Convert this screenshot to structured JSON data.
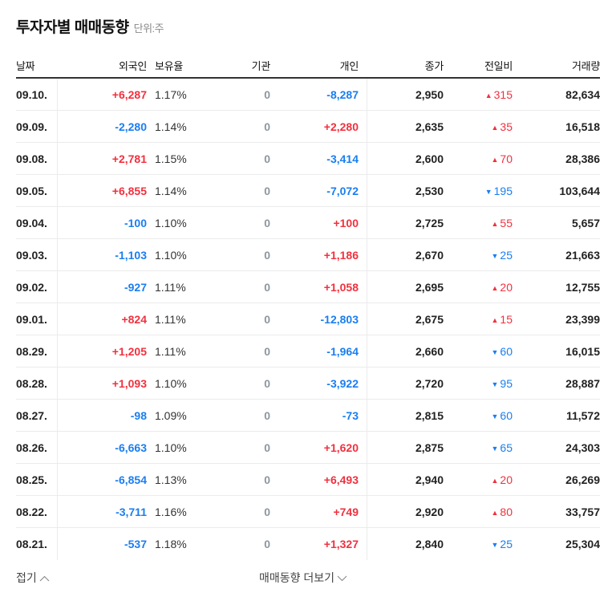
{
  "header": {
    "title": "투자자별 매매동향",
    "unit": "단위:주"
  },
  "colors": {
    "up": "#f0313f",
    "down": "#1a7ef0",
    "neutral": "#8e969e"
  },
  "table": {
    "columns": {
      "date": "날짜",
      "foreign": "외국인",
      "ratio": "보유율",
      "institution": "기관",
      "individual": "개인",
      "close": "종가",
      "change": "전일비",
      "volume": "거래량"
    },
    "rows": [
      {
        "date": "09.10.",
        "foreign": "+6,287",
        "ratio": "1.17%",
        "institution": "0",
        "individual": "-8,287",
        "close": "2,950",
        "change_dir": "up",
        "change_icon": "▲",
        "change": "315",
        "volume": "82,634"
      },
      {
        "date": "09.09.",
        "foreign": "-2,280",
        "ratio": "1.14%",
        "institution": "0",
        "individual": "+2,280",
        "close": "2,635",
        "change_dir": "up",
        "change_icon": "▲",
        "change": "35",
        "volume": "16,518"
      },
      {
        "date": "09.08.",
        "foreign": "+2,781",
        "ratio": "1.15%",
        "institution": "0",
        "individual": "-3,414",
        "close": "2,600",
        "change_dir": "up",
        "change_icon": "▲",
        "change": "70",
        "volume": "28,386"
      },
      {
        "date": "09.05.",
        "foreign": "+6,855",
        "ratio": "1.14%",
        "institution": "0",
        "individual": "-7,072",
        "close": "2,530",
        "change_dir": "down",
        "change_icon": "▼",
        "change": "195",
        "volume": "103,644"
      },
      {
        "date": "09.04.",
        "foreign": "-100",
        "ratio": "1.10%",
        "institution": "0",
        "individual": "+100",
        "close": "2,725",
        "change_dir": "up",
        "change_icon": "▲",
        "change": "55",
        "volume": "5,657"
      },
      {
        "date": "09.03.",
        "foreign": "-1,103",
        "ratio": "1.10%",
        "institution": "0",
        "individual": "+1,186",
        "close": "2,670",
        "change_dir": "down",
        "change_icon": "▼",
        "change": "25",
        "volume": "21,663"
      },
      {
        "date": "09.02.",
        "foreign": "-927",
        "ratio": "1.11%",
        "institution": "0",
        "individual": "+1,058",
        "close": "2,695",
        "change_dir": "up",
        "change_icon": "▲",
        "change": "20",
        "volume": "12,755"
      },
      {
        "date": "09.01.",
        "foreign": "+824",
        "ratio": "1.11%",
        "institution": "0",
        "individual": "-12,803",
        "close": "2,675",
        "change_dir": "up",
        "change_icon": "▲",
        "change": "15",
        "volume": "23,399"
      },
      {
        "date": "08.29.",
        "foreign": "+1,205",
        "ratio": "1.11%",
        "institution": "0",
        "individual": "-1,964",
        "close": "2,660",
        "change_dir": "down",
        "change_icon": "▼",
        "change": "60",
        "volume": "16,015"
      },
      {
        "date": "08.28.",
        "foreign": "+1,093",
        "ratio": "1.10%",
        "institution": "0",
        "individual": "-3,922",
        "close": "2,720",
        "change_dir": "down",
        "change_icon": "▼",
        "change": "95",
        "volume": "28,887"
      },
      {
        "date": "08.27.",
        "foreign": "-98",
        "ratio": "1.09%",
        "institution": "0",
        "individual": "-73",
        "close": "2,815",
        "change_dir": "down",
        "change_icon": "▼",
        "change": "60",
        "volume": "11,572"
      },
      {
        "date": "08.26.",
        "foreign": "-6,663",
        "ratio": "1.10%",
        "institution": "0",
        "individual": "+1,620",
        "close": "2,875",
        "change_dir": "down",
        "change_icon": "▼",
        "change": "65",
        "volume": "24,303"
      },
      {
        "date": "08.25.",
        "foreign": "-6,854",
        "ratio": "1.13%",
        "institution": "0",
        "individual": "+6,493",
        "close": "2,940",
        "change_dir": "up",
        "change_icon": "▲",
        "change": "20",
        "volume": "26,269"
      },
      {
        "date": "08.22.",
        "foreign": "-3,711",
        "ratio": "1.16%",
        "institution": "0",
        "individual": "+749",
        "close": "2,920",
        "change_dir": "up",
        "change_icon": "▲",
        "change": "80",
        "volume": "33,757"
      },
      {
        "date": "08.21.",
        "foreign": "-537",
        "ratio": "1.18%",
        "institution": "0",
        "individual": "+1,327",
        "close": "2,840",
        "change_dir": "down",
        "change_icon": "▼",
        "change": "25",
        "volume": "25,304"
      }
    ]
  },
  "footer": {
    "fold_label": "접기",
    "fold_icon": "chevron-up-icon",
    "more_label": "매매동향 더보기",
    "more_icon": "chevron-down-icon"
  }
}
